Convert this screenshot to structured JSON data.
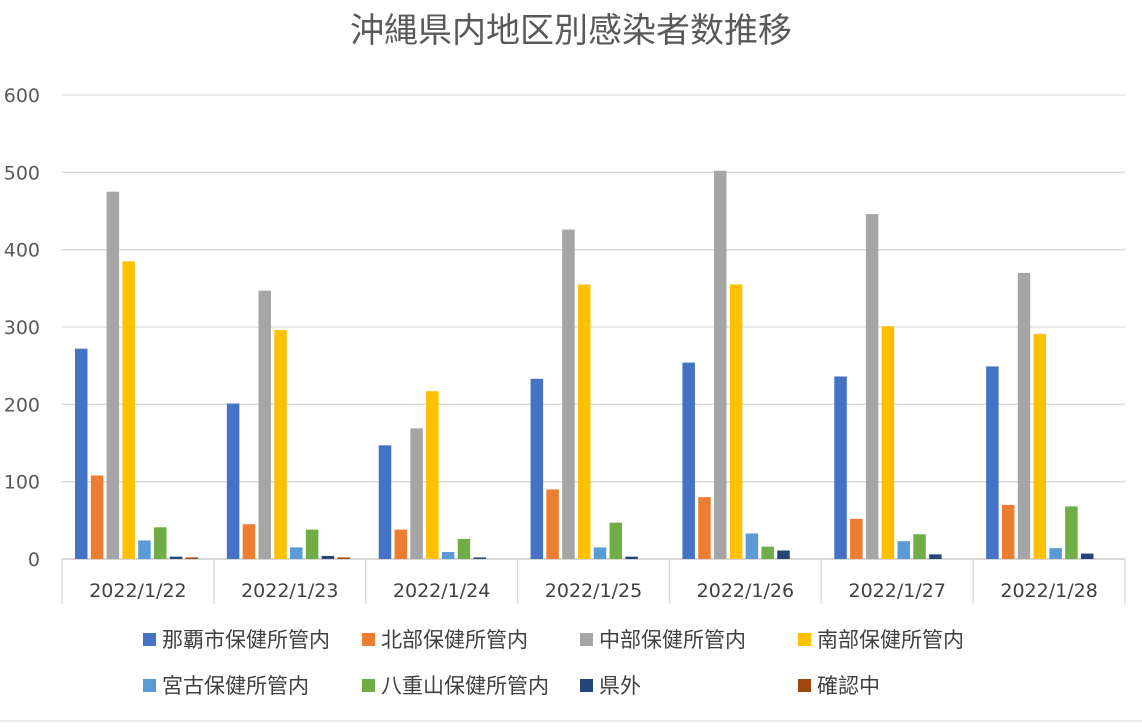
{
  "chart_data": {
    "type": "bar",
    "title": "沖縄県内地区別感染者数推移",
    "xlabel": "",
    "ylabel": "",
    "ylim": [
      0,
      600
    ],
    "yticks": [
      0,
      100,
      200,
      300,
      400,
      500,
      600
    ],
    "grid": true,
    "legend_position": "bottom",
    "categories": [
      "2022/1/22",
      "2022/1/23",
      "2022/1/24",
      "2022/1/25",
      "2022/1/26",
      "2022/1/27",
      "2022/1/28"
    ],
    "series": [
      {
        "name": "那覇市保健所管内",
        "color": "#4472C4",
        "values": [
          272,
          201,
          147,
          233,
          254,
          236,
          249
        ]
      },
      {
        "name": "北部保健所管内",
        "color": "#ED7D31",
        "values": [
          108,
          45,
          38,
          90,
          80,
          52,
          70
        ]
      },
      {
        "name": "中部保健所管内",
        "color": "#A5A5A5",
        "values": [
          475,
          347,
          169,
          426,
          502,
          446,
          370
        ]
      },
      {
        "name": "南部保健所管内",
        "color": "#FFC000",
        "values": [
          385,
          296,
          217,
          355,
          355,
          301,
          291
        ]
      },
      {
        "name": "宮古保健所管内",
        "color": "#5B9BD5",
        "values": [
          24,
          15,
          9,
          15,
          33,
          23,
          14
        ]
      },
      {
        "name": "八重山保健所管内",
        "color": "#70AD47",
        "values": [
          41,
          38,
          26,
          47,
          16,
          32,
          68
        ]
      },
      {
        "name": "県外",
        "color": "#264478",
        "values": [
          3,
          4,
          2,
          3,
          11,
          6,
          7
        ]
      },
      {
        "name": "確認中",
        "color": "#9E480E",
        "values": [
          2,
          2,
          0,
          0,
          0,
          0,
          0
        ]
      }
    ]
  }
}
